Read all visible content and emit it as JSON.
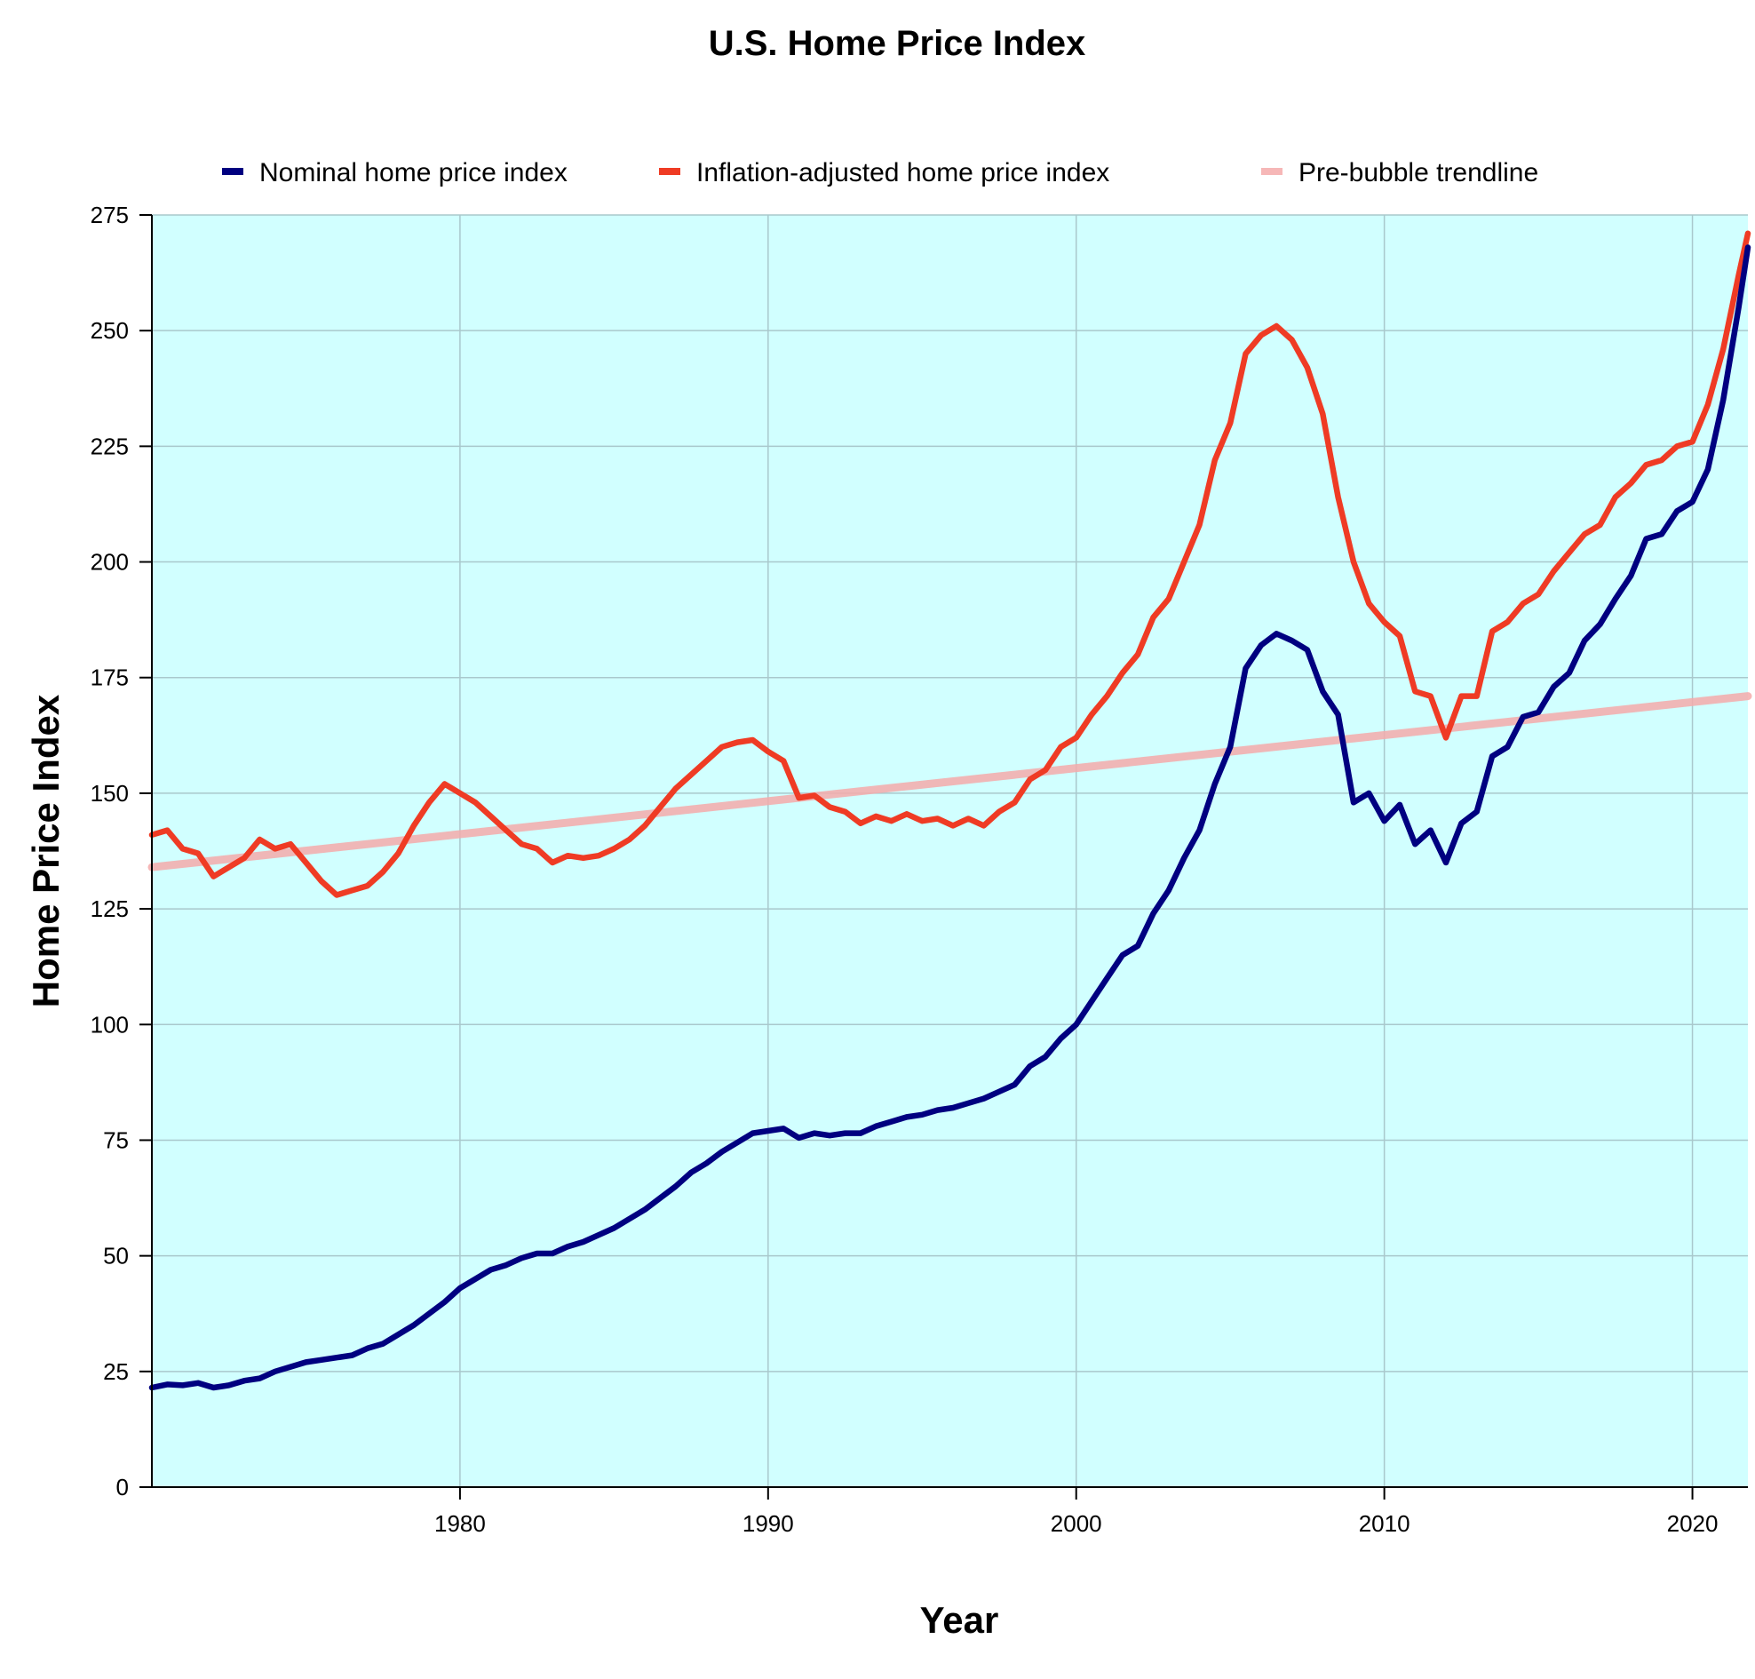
{
  "chart_data": {
    "type": "line",
    "title": "U.S. Home Price Index",
    "xlabel": "Year",
    "ylabel": "Home Price Index",
    "xlim": [
      1970,
      2021.8
    ],
    "ylim": [
      0,
      275
    ],
    "x_ticks": [
      1980,
      1990,
      2000,
      2010,
      2020
    ],
    "y_ticks": [
      0,
      25,
      50,
      75,
      100,
      125,
      150,
      175,
      200,
      225,
      250,
      275
    ],
    "grid": true,
    "legend_position": "top",
    "plot_background": "#d1ffff",
    "series": [
      {
        "name": "Nominal home price index",
        "color": "#000080",
        "x": [
          1970,
          1970.5,
          1971,
          1971.5,
          1972,
          1972.5,
          1973,
          1973.5,
          1974,
          1974.5,
          1975,
          1975.5,
          1976,
          1976.5,
          1977,
          1977.5,
          1978,
          1978.5,
          1979,
          1979.5,
          1980,
          1980.5,
          1981,
          1981.5,
          1982,
          1982.5,
          1983,
          1983.5,
          1984,
          1984.5,
          1985,
          1985.5,
          1986,
          1986.5,
          1987,
          1987.5,
          1988,
          1988.5,
          1989,
          1989.5,
          1990,
          1990.5,
          1991,
          1991.5,
          1992,
          1992.5,
          1993,
          1993.5,
          1994,
          1994.5,
          1995,
          1995.5,
          1996,
          1996.5,
          1997,
          1997.5,
          1998,
          1998.5,
          1999,
          1999.5,
          2000,
          2000.5,
          2001,
          2001.5,
          2002,
          2002.5,
          2003,
          2003.5,
          2004,
          2004.5,
          2005,
          2005.5,
          2006,
          2006.5,
          2007,
          2007.5,
          2008,
          2008.5,
          2009,
          2009.5,
          2010,
          2010.5,
          2011,
          2011.5,
          2012,
          2012.5,
          2013,
          2013.5,
          2014,
          2014.5,
          2015,
          2015.5,
          2016,
          2016.5,
          2017,
          2017.5,
          2018,
          2018.5,
          2019,
          2019.5,
          2020,
          2020.5,
          2021,
          2021.5,
          2021.8
        ],
        "values": [
          21.5,
          22.2,
          22.0,
          22.5,
          21.5,
          22.0,
          23.0,
          23.5,
          25.0,
          26.0,
          27.0,
          27.5,
          28.0,
          28.5,
          30.0,
          31.0,
          33.0,
          35.0,
          37.5,
          40.0,
          43.0,
          45.0,
          47.0,
          48.0,
          49.5,
          50.5,
          50.5,
          52.0,
          53.0,
          54.5,
          56.0,
          58.0,
          60.0,
          62.5,
          65.0,
          68.0,
          70.0,
          72.5,
          74.5,
          76.5,
          77.0,
          77.5,
          75.5,
          76.5,
          76.0,
          76.5,
          76.5,
          78.0,
          79.0,
          80.0,
          80.5,
          81.5,
          82.0,
          83.0,
          84.0,
          85.5,
          87.0,
          91.0,
          93.0,
          97.0,
          100.0,
          105.0,
          110.0,
          115.0,
          117.0,
          124.0,
          129.0,
          136.0,
          142.0,
          152.0,
          160.0,
          177.0,
          182.0,
          184.5,
          183.0,
          181.0,
          172.0,
          167.0,
          148.0,
          150.0,
          144.0,
          147.5,
          139.0,
          142.0,
          135.0,
          143.5,
          146.0,
          158.0,
          160.0,
          166.5,
          167.5,
          173.0,
          176.0,
          183.0,
          186.5,
          192.0,
          197.0,
          205.0,
          206.0,
          211.0,
          213.0,
          220.0,
          235.0,
          255.0,
          268.0
        ]
      },
      {
        "name": "Inflation-adjusted home price index",
        "color": "#ef3b24",
        "x": [
          1970,
          1970.5,
          1971,
          1971.5,
          1972,
          1972.5,
          1973,
          1973.5,
          1974,
          1974.5,
          1975,
          1975.5,
          1976,
          1976.5,
          1977,
          1977.5,
          1978,
          1978.5,
          1979,
          1979.5,
          1980,
          1980.5,
          1981,
          1981.5,
          1982,
          1982.5,
          1983,
          1983.5,
          1984,
          1984.5,
          1985,
          1985.5,
          1986,
          1986.5,
          1987,
          1987.5,
          1988,
          1988.5,
          1989,
          1989.5,
          1990,
          1990.5,
          1991,
          1991.5,
          1992,
          1992.5,
          1993,
          1993.5,
          1994,
          1994.5,
          1995,
          1995.5,
          1996,
          1996.5,
          1997,
          1997.5,
          1998,
          1998.5,
          1999,
          1999.5,
          2000,
          2000.5,
          2001,
          2001.5,
          2002,
          2002.5,
          2003,
          2003.5,
          2004,
          2004.5,
          2005,
          2005.5,
          2006,
          2006.5,
          2007,
          2007.5,
          2008,
          2008.5,
          2009,
          2009.5,
          2010,
          2010.5,
          2011,
          2011.5,
          2012,
          2012.5,
          2013,
          2013.5,
          2014,
          2014.5,
          2015,
          2015.5,
          2016,
          2016.5,
          2017,
          2017.5,
          2018,
          2018.5,
          2019,
          2019.5,
          2020,
          2020.5,
          2021,
          2021.5,
          2021.8
        ],
        "values": [
          141.0,
          142.0,
          138.0,
          137.0,
          132.0,
          134.0,
          136.0,
          140.0,
          138.0,
          139.0,
          135.0,
          131.0,
          128.0,
          129.0,
          130.0,
          133.0,
          137.0,
          143.0,
          148.0,
          152.0,
          150.0,
          148.0,
          145.0,
          142.0,
          139.0,
          138.0,
          135.0,
          136.5,
          136.0,
          136.5,
          138.0,
          140.0,
          143.0,
          147.0,
          151.0,
          154.0,
          157.0,
          160.0,
          161.0,
          161.5,
          159.0,
          157.0,
          149.0,
          149.5,
          147.0,
          146.0,
          143.5,
          145.0,
          144.0,
          145.5,
          144.0,
          144.5,
          143.0,
          144.5,
          143.0,
          146.0,
          148.0,
          153.0,
          155.0,
          160.0,
          162.0,
          167.0,
          171.0,
          176.0,
          180.0,
          188.0,
          192.0,
          200.0,
          208.0,
          222.0,
          230.0,
          245.0,
          249.0,
          251.0,
          248.0,
          242.0,
          232.0,
          214.0,
          200.0,
          191.0,
          187.0,
          184.0,
          172.0,
          171.0,
          162.0,
          171.0,
          171.0,
          185.0,
          187.0,
          191.0,
          193.0,
          198.0,
          202.0,
          206.0,
          208.0,
          214.0,
          217.0,
          221.0,
          222.0,
          225.0,
          226.0,
          234.0,
          246.0,
          262.0,
          271.0
        ]
      },
      {
        "name": "Pre-bubble trendline",
        "color": "#f4aaaa",
        "x": [
          1970,
          2021.8
        ],
        "values": [
          134.0,
          171.0
        ]
      }
    ]
  }
}
